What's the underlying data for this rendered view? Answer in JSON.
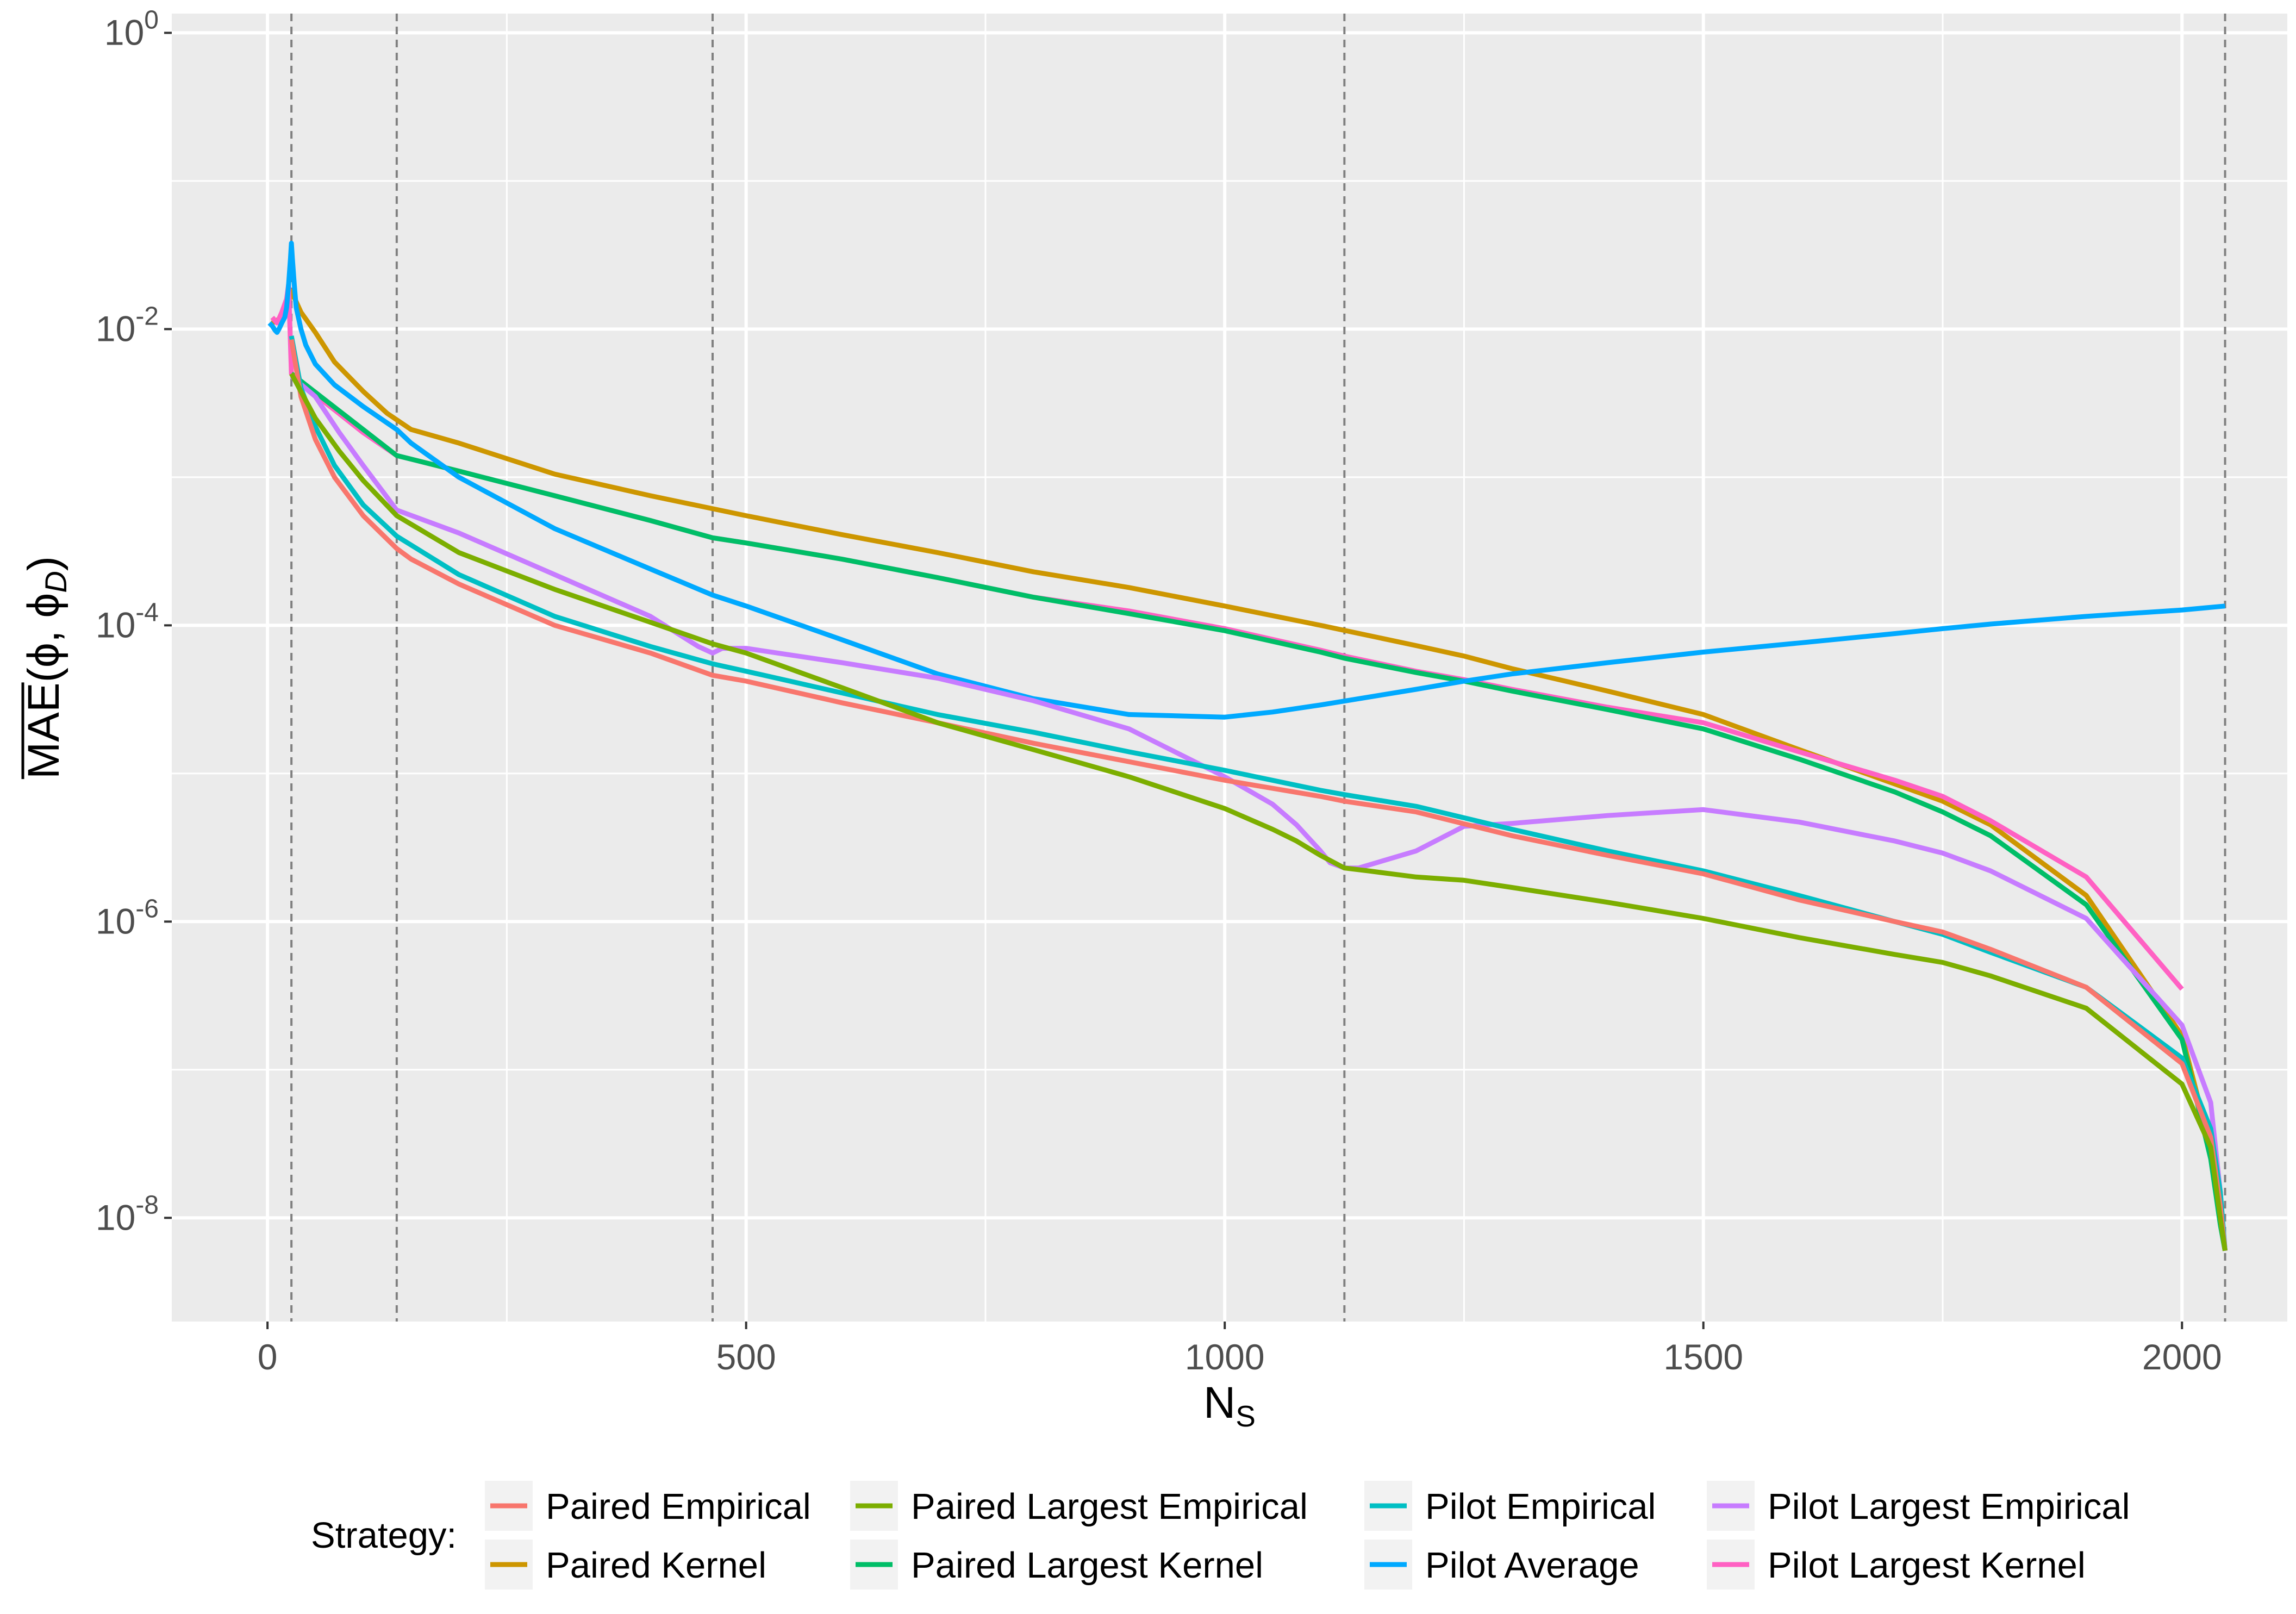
{
  "chart_data": {
    "type": "line",
    "title": "",
    "xlabel_main": "N",
    "xlabel_sub": "S",
    "ylabel": {
      "overlined": "MAE",
      "open": "(",
      "phi": "ϕ",
      "sep": ", ",
      "phi_d": "ϕ",
      "sub": "D",
      "close": ")"
    },
    "x_ticks": [
      {
        "value": 0,
        "label": "0"
      },
      {
        "value": 500,
        "label": "500"
      },
      {
        "value": 1000,
        "label": "1000"
      },
      {
        "value": 1500,
        "label": "1500"
      },
      {
        "value": 2000,
        "label": "2000"
      }
    ],
    "y_ticks": [
      {
        "exp": 0,
        "base": "10",
        "power": "0"
      },
      {
        "exp": -2,
        "base": "10",
        "power": "-2"
      },
      {
        "exp": -4,
        "base": "10",
        "power": "-4"
      },
      {
        "exp": -6,
        "base": "10",
        "power": "-6"
      },
      {
        "exp": -8,
        "base": "10",
        "power": "-8"
      }
    ],
    "xlim": [
      -100,
      2110
    ],
    "ylim_log10": [
      -8.7,
      0.13
    ],
    "yscale": "log10",
    "vlines": [
      25,
      135,
      465,
      1125,
      2045
    ],
    "grid": true,
    "legend": {
      "position": "bottom",
      "title": "Strategy:",
      "columns": 4,
      "entries": [
        [
          "Paired Empirical",
          "Paired Kernel"
        ],
        [
          "Paired Largest Empirical",
          "Paired Largest Kernel"
        ],
        [
          "Pilot Empirical",
          "Pilot Average"
        ],
        [
          "Pilot Largest Empirical",
          "Pilot Largest Kernel"
        ]
      ]
    },
    "series": [
      {
        "name": "Paired Kernel",
        "color": "#CD9600",
        "x": [
          5,
          15,
          20,
          25,
          35,
          50,
          70,
          100,
          125,
          150,
          200,
          300,
          400,
          500,
          600,
          700,
          800,
          900,
          1000,
          1100,
          1200,
          1250,
          1300,
          1400,
          1500,
          1600,
          1700,
          1750,
          1800,
          1900,
          2000,
          2030,
          2040,
          2045
        ],
        "y": [
          0.011,
          0.012,
          0.013,
          0.018,
          0.013,
          0.0095,
          0.006,
          0.0038,
          0.0027,
          0.0021,
          0.0017,
          0.00105,
          0.00075,
          0.00055,
          0.00041,
          0.00031,
          0.00023,
          0.00018,
          0.000135,
          0.0001,
          7.3e-05,
          6.2e-05,
          5.1e-05,
          3.6e-05,
          2.5e-05,
          1.45e-05,
          8.5e-06,
          6.5e-06,
          4.5e-06,
          1.5e-06,
          1.7e-07,
          3e-08,
          1e-08,
          6e-09
        ]
      },
      {
        "name": "Pilot Largest Kernel",
        "color": "#FF61C3",
        "x": [
          5,
          10,
          15,
          20,
          22,
          25,
          50,
          100,
          135,
          200,
          300,
          400,
          465,
          500,
          600,
          700,
          800,
          900,
          1000,
          1100,
          1125,
          1200,
          1250,
          1300,
          1400,
          1500,
          1600,
          1700,
          1750,
          1800,
          1900,
          2000
        ],
        "y": [
          0.012,
          0.011,
          0.013,
          0.016,
          0.02,
          0.005,
          0.0036,
          0.002,
          0.0014,
          0.0011,
          0.00075,
          0.00051,
          0.00039,
          0.00036,
          0.00028,
          0.00021,
          0.000155,
          0.000125,
          9.5e-05,
          6.8e-05,
          6.2e-05,
          4.9e-05,
          4.3e-05,
          3.7e-05,
          2.8e-05,
          2.2e-05,
          1.4e-05,
          9e-06,
          7e-06,
          4.8e-06,
          2e-06,
          3.5e-07
        ]
      },
      {
        "name": "Paired Largest Kernel",
        "color": "#00BE67",
        "x": [
          25,
          135,
          200,
          300,
          400,
          465,
          500,
          600,
          700,
          800,
          900,
          1000,
          1100,
          1125,
          1200,
          1250,
          1300,
          1400,
          1500,
          1600,
          1700,
          1750,
          1800,
          1900,
          2000,
          2030,
          2040,
          2045
        ],
        "y": [
          0.005,
          0.0014,
          0.0011,
          0.00075,
          0.00051,
          0.00039,
          0.00036,
          0.00028,
          0.00021,
          0.000155,
          0.00012,
          9.2e-05,
          6.6e-05,
          6e-05,
          4.8e-05,
          4.2e-05,
          3.6e-05,
          2.7e-05,
          2e-05,
          1.25e-05,
          7.5e-06,
          5.5e-06,
          3.8e-06,
          1.3e-06,
          1.6e-07,
          2.5e-08,
          9e-09,
          6e-09
        ]
      },
      {
        "name": "Pilot Average",
        "color": "#00A9FF",
        "x": [
          2,
          5,
          8,
          10,
          12,
          15,
          18,
          20,
          22,
          24,
          25,
          26,
          28,
          30,
          35,
          40,
          50,
          70,
          100,
          135,
          150,
          200,
          300,
          400,
          465,
          500,
          600,
          700,
          800,
          900,
          1000,
          1050,
          1100,
          1200,
          1250,
          1300,
          1400,
          1500,
          1600,
          1700,
          1750,
          1800,
          1900,
          2000,
          2045
        ],
        "y": [
          0.011,
          0.0105,
          0.0098,
          0.0095,
          0.01,
          0.011,
          0.012,
          0.014,
          0.02,
          0.03,
          0.038,
          0.03,
          0.02,
          0.014,
          0.01,
          0.0078,
          0.0058,
          0.0042,
          0.003,
          0.0021,
          0.0017,
          0.001,
          0.00045,
          0.00024,
          0.00016,
          0.000135,
          8e-05,
          4.7e-05,
          3.2e-05,
          2.5e-05,
          2.4e-05,
          2.6e-05,
          2.9e-05,
          3.7e-05,
          4.2e-05,
          4.7e-05,
          5.6e-05,
          6.6e-05,
          7.6e-05,
          8.8e-05,
          9.5e-05,
          0.000102,
          0.000115,
          0.000127,
          0.000135
        ]
      },
      {
        "name": "Pilot Largest Empirical",
        "color": "#C77CFF",
        "x": [
          25,
          50,
          75,
          100,
          135,
          200,
          300,
          400,
          450,
          465,
          475,
          500,
          600,
          700,
          800,
          900,
          1000,
          1050,
          1075,
          1100,
          1110,
          1125,
          1140,
          1200,
          1250,
          1300,
          1400,
          1500,
          1600,
          1700,
          1750,
          1800,
          1900,
          2000,
          2030,
          2040,
          2045
        ],
        "y": [
          0.0048,
          0.0035,
          0.002,
          0.0012,
          0.0006,
          0.00042,
          0.00022,
          0.000115,
          7.2e-05,
          6.5e-05,
          7e-05,
          7e-05,
          5.6e-05,
          4.4e-05,
          3.1e-05,
          2e-05,
          9.5e-06,
          6.2e-06,
          4.5e-06,
          3e-06,
          2.5e-06,
          2.3e-06,
          2.3e-06,
          3e-06,
          4.4e-06,
          4.6e-06,
          5.2e-06,
          5.7e-06,
          4.7e-06,
          3.5e-06,
          2.9e-06,
          2.2e-06,
          1.05e-06,
          2e-07,
          6e-08,
          1.5e-08,
          6e-09
        ]
      },
      {
        "name": "Pilot Empirical",
        "color": "#00BFC4",
        "x": [
          25,
          35,
          50,
          70,
          100,
          135,
          200,
          300,
          400,
          465,
          500,
          600,
          700,
          800,
          900,
          1000,
          1100,
          1125,
          1200,
          1300,
          1400,
          1500,
          1600,
          1700,
          1750,
          1800,
          1900,
          2000,
          2030,
          2040,
          2045
        ],
        "y": [
          0.009,
          0.004,
          0.0022,
          0.0012,
          0.00065,
          0.0004,
          0.00022,
          0.000115,
          7.2e-05,
          5.5e-05,
          4.9e-05,
          3.5e-05,
          2.5e-05,
          1.9e-05,
          1.4e-05,
          1.05e-05,
          7.7e-06,
          7.2e-06,
          6e-06,
          4.2e-06,
          3e-06,
          2.2e-06,
          1.5e-06,
          1e-06,
          8.2e-07,
          6.2e-07,
          3.6e-07,
          1.2e-07,
          4e-08,
          1.5e-08,
          6e-09
        ]
      },
      {
        "name": "Paired Empirical",
        "color": "#F8766D",
        "x": [
          25,
          35,
          50,
          70,
          100,
          135,
          150,
          200,
          300,
          400,
          465,
          500,
          600,
          700,
          800,
          900,
          1000,
          1100,
          1125,
          1200,
          1300,
          1400,
          1500,
          1600,
          1700,
          1750,
          1800,
          1900,
          2000,
          2030,
          2040,
          2045
        ],
        "y": [
          0.0085,
          0.0035,
          0.0018,
          0.001,
          0.00055,
          0.00033,
          0.00028,
          0.00019,
          0.0001,
          6.5e-05,
          4.6e-05,
          4.2e-05,
          3e-05,
          2.2e-05,
          1.6e-05,
          1.2e-05,
          9e-06,
          7e-06,
          6.5e-06,
          5.5e-06,
          3.8e-06,
          2.8e-06,
          2.1e-06,
          1.4e-06,
          1e-06,
          8.5e-07,
          6.5e-07,
          3.6e-07,
          1.1e-07,
          3.5e-08,
          1.2e-08,
          6e-09
        ]
      },
      {
        "name": "Paired Largest Empirical",
        "color": "#7CAE00",
        "x": [
          25,
          50,
          75,
          100,
          135,
          200,
          300,
          400,
          465,
          500,
          600,
          700,
          800,
          900,
          1000,
          1050,
          1075,
          1100,
          1125,
          1150,
          1200,
          1250,
          1300,
          1400,
          1500,
          1600,
          1700,
          1750,
          1800,
          1900,
          2000,
          2030,
          2040,
          2045
        ],
        "y": [
          0.005,
          0.0025,
          0.0015,
          0.00095,
          0.00055,
          0.00031,
          0.000175,
          0.000105,
          7.5e-05,
          6.5e-05,
          3.8e-05,
          2.2e-05,
          1.45e-05,
          9.5e-06,
          5.8e-06,
          4.2e-06,
          3.5e-06,
          2.8e-06,
          2.3e-06,
          2.2e-06,
          2e-06,
          1.9e-06,
          1.7e-06,
          1.35e-06,
          1.05e-06,
          7.8e-07,
          6e-07,
          5.3e-07,
          4.3e-07,
          2.6e-07,
          8e-08,
          3e-08,
          1e-08,
          6e-09
        ]
      }
    ]
  }
}
